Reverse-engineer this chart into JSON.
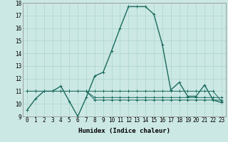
{
  "xlabel": "Humidex (Indice chaleur)",
  "bg_color": "#cce8e4",
  "grid_color": "#b0d8d2",
  "line_color": "#1a6b5e",
  "x_data": [
    0,
    1,
    2,
    3,
    4,
    5,
    6,
    7,
    8,
    9,
    10,
    11,
    12,
    13,
    14,
    15,
    16,
    17,
    18,
    19,
    20,
    21,
    22,
    23
  ],
  "series": [
    [
      9.5,
      10.4,
      11.0,
      11.0,
      11.4,
      10.2,
      9.0,
      10.5,
      12.2,
      12.5,
      14.2,
      16.0,
      17.7,
      17.7,
      17.7,
      17.1,
      14.7,
      11.1,
      11.7,
      10.6,
      10.6,
      11.5,
      10.3,
      10.1
    ],
    [
      11.0,
      11.0,
      11.0,
      11.0,
      11.0,
      11.0,
      11.0,
      11.0,
      10.5,
      10.5,
      10.5,
      10.5,
      10.5,
      10.5,
      10.5,
      10.5,
      10.5,
      10.5,
      10.5,
      10.5,
      10.5,
      10.5,
      10.5,
      10.5
    ],
    [
      11.0,
      11.0,
      11.0,
      11.0,
      11.0,
      11.0,
      11.0,
      11.0,
      10.3,
      10.3,
      10.3,
      10.3,
      10.3,
      10.3,
      10.3,
      10.3,
      10.3,
      10.3,
      10.3,
      10.3,
      10.3,
      10.3,
      10.3,
      10.3
    ],
    [
      11.0,
      11.0,
      11.0,
      11.0,
      11.0,
      11.0,
      11.0,
      11.0,
      11.0,
      11.0,
      11.0,
      11.0,
      11.0,
      11.0,
      11.0,
      11.0,
      11.0,
      11.0,
      11.0,
      11.0,
      11.0,
      11.0,
      11.0,
      10.2
    ]
  ],
  "ylim": [
    9,
    18
  ],
  "yticks": [
    9,
    10,
    11,
    12,
    13,
    14,
    15,
    16,
    17,
    18
  ],
  "xticks": [
    0,
    1,
    2,
    3,
    4,
    5,
    6,
    7,
    8,
    9,
    10,
    11,
    12,
    13,
    14,
    15,
    16,
    17,
    18,
    19,
    20,
    21,
    22,
    23
  ],
  "xlabel_fontsize": 6.5,
  "tick_fontsize": 5.5
}
